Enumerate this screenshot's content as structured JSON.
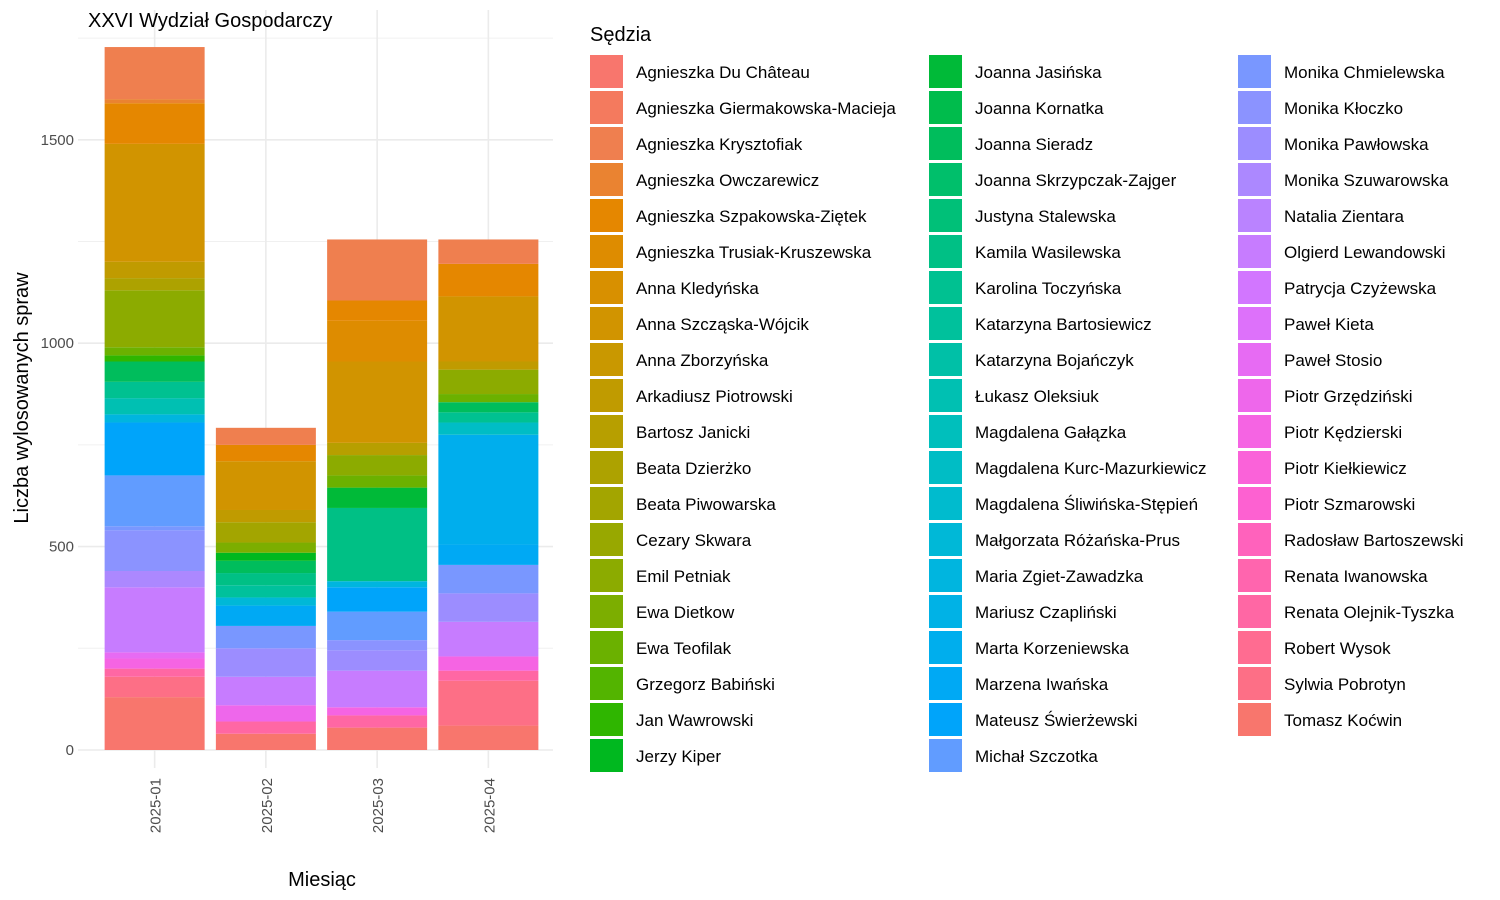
{
  "chart_data": {
    "type": "bar",
    "stacked": true,
    "title": "XXVI Wydział Gospodarczy",
    "xlabel": "Miesiąc",
    "ylabel": "Liczba wylosowanych spraw",
    "ylim": [
      0,
      1810
    ],
    "yticks": [
      0,
      500,
      1000,
      1500
    ],
    "grid": true,
    "categories": [
      "2025-01",
      "2025-02",
      "2025-03",
      "2025-04"
    ],
    "totals": [
      1728,
      792,
      1255,
      1255
    ],
    "legend": {
      "title": "Sędzia",
      "placement": "right",
      "entries": [
        {
          "name": "Agnieszka Du Château",
          "color": "#F8766D"
        },
        {
          "name": "Agnieszka Giermakowska-Macieja",
          "color": "#F47A5E"
        },
        {
          "name": "Agnieszka Krysztofiak",
          "color": "#EF7F4F"
        },
        {
          "name": "Agnieszka Owczarewicz",
          "color": "#EA8331"
        },
        {
          "name": "Agnieszka Szpakowska-Ziętek",
          "color": "#E58700"
        },
        {
          "name": "Agnieszka Trusiak-Kruszewska",
          "color": "#DE8C00"
        },
        {
          "name": "Anna Kledyńska",
          "color": "#D89000"
        },
        {
          "name": "Anna Szcząska-Wójcik",
          "color": "#D19400"
        },
        {
          "name": "Anna Zborzyńska",
          "color": "#C99800"
        },
        {
          "name": "Arkadiusz Piotrowski",
          "color": "#C09B00"
        },
        {
          "name": "Bartosz Janicki",
          "color": "#B79F00"
        },
        {
          "name": "Beata Dzierżko",
          "color": "#ADA200"
        },
        {
          "name": "Beata Piwowarska",
          "color": "#A3A500"
        },
        {
          "name": "Cezary Skwara",
          "color": "#98A800"
        },
        {
          "name": "Emil Petniak",
          "color": "#8CAB00"
        },
        {
          "name": "Ewa Dietkow",
          "color": "#7CAE00"
        },
        {
          "name": "Ewa Teofilak",
          "color": "#6BB100"
        },
        {
          "name": "Grzegorz Babiński",
          "color": "#53B400"
        },
        {
          "name": "Jan Wawrowski",
          "color": "#2FB600"
        },
        {
          "name": "Jerzy Kiper",
          "color": "#00B81F"
        },
        {
          "name": "Joanna Jasińska",
          "color": "#00BA38"
        },
        {
          "name": "Joanna Kornatka",
          "color": "#00BC4C"
        },
        {
          "name": "Joanna Sieradz",
          "color": "#00BD5C"
        },
        {
          "name": "Joanna Skrzypczak-Zajger",
          "color": "#00BF6B"
        },
        {
          "name": "Justyna Stalewska",
          "color": "#00C078"
        },
        {
          "name": "Kamila Wasilewska",
          "color": "#00C085"
        },
        {
          "name": "Karolina Toczyńska",
          "color": "#00C191"
        },
        {
          "name": "Katarzyna Bartosiewicz",
          "color": "#00C19C"
        },
        {
          "name": "Katarzyna Bojańczyk",
          "color": "#00C0A7"
        },
        {
          "name": "Łukasz Oleksiuk",
          "color": "#00C0B2"
        },
        {
          "name": "Magdalena Gałązka",
          "color": "#00BFBC"
        },
        {
          "name": "Magdalena Kurc-Mazurkiewicz",
          "color": "#00BDC5"
        },
        {
          "name": "Magdalena Śliwińska-Stępień",
          "color": "#00BBCE"
        },
        {
          "name": "Małgorzata Różańska-Prus",
          "color": "#00B8D7"
        },
        {
          "name": "Maria Zgiet-Zawadzka",
          "color": "#00B5DF"
        },
        {
          "name": "Mariusz Czapliński",
          "color": "#00B2E6"
        },
        {
          "name": "Marta Korzeniewska",
          "color": "#00AEED"
        },
        {
          "name": "Marzena Iwańska",
          "color": "#00A9F4"
        },
        {
          "name": "Mateusz Świerżewski",
          "color": "#00A4FA"
        },
        {
          "name": "Michał Szczotka",
          "color": "#619CFF"
        },
        {
          "name": "Monika Chmielewska",
          "color": "#7997FF"
        },
        {
          "name": "Monika Kłoczko",
          "color": "#8B93FF"
        },
        {
          "name": "Monika Pawłowska",
          "color": "#9C8DFF"
        },
        {
          "name": "Monika Szuwarowska",
          "color": "#AC88FF"
        },
        {
          "name": "Natalia Zientara",
          "color": "#BA83FF"
        },
        {
          "name": "Olgierd Lewandowski",
          "color": "#C77CFF"
        },
        {
          "name": "Patrycja Czyżewska",
          "color": "#D276FF"
        },
        {
          "name": "Paweł Kieta",
          "color": "#DD71FA"
        },
        {
          "name": "Paweł Stosio",
          "color": "#E76BF3"
        },
        {
          "name": "Piotr Grzędziński",
          "color": "#EE67EB"
        },
        {
          "name": "Piotr Kędzierski",
          "color": "#F564E3"
        },
        {
          "name": "Piotr Kiełkiewicz",
          "color": "#FA62D9"
        },
        {
          "name": "Piotr Szmarowski",
          "color": "#FD61D1"
        },
        {
          "name": "Radosław Bartoszewski",
          "color": "#FF62BC"
        },
        {
          "name": "Renata Iwanowska",
          "color": "#FF65AE"
        },
        {
          "name": "Renata Olejnik-Tyszka",
          "color": "#FF67A4"
        },
        {
          "name": "Robert Wysok",
          "color": "#FF6C91"
        },
        {
          "name": "Sylwia Pobrotyn",
          "color": "#FD6F86"
        },
        {
          "name": "Tomasz Koćwin",
          "color": "#F8766D"
        }
      ]
    },
    "stacks": [
      [
        {
          "color": "#F8766D",
          "value": 130
        },
        {
          "color": "#FD6F86",
          "value": 50
        },
        {
          "color": "#FF67A4",
          "value": 20
        },
        {
          "color": "#F564E3",
          "value": 25
        },
        {
          "color": "#E76BF3",
          "value": 15
        },
        {
          "color": "#C77CFF",
          "value": 160
        },
        {
          "color": "#AC88FF",
          "value": 40
        },
        {
          "color": "#8B93FF",
          "value": 100
        },
        {
          "color": "#7997FF",
          "value": 10
        },
        {
          "color": "#619CFF",
          "value": 125
        },
        {
          "color": "#00A4FA",
          "value": 130
        },
        {
          "color": "#00B5DF",
          "value": 20
        },
        {
          "color": "#00C0B2",
          "value": 40
        },
        {
          "color": "#00C191",
          "value": 40
        },
        {
          "color": "#00BD5C",
          "value": 50
        },
        {
          "color": "#2FB600",
          "value": 15
        },
        {
          "color": "#6BB100",
          "value": 20
        },
        {
          "color": "#8CAB00",
          "value": 140
        },
        {
          "color": "#ADA200",
          "value": 30
        },
        {
          "color": "#C09B00",
          "value": 40
        },
        {
          "color": "#D19400",
          "value": 290
        },
        {
          "color": "#E58700",
          "value": 100
        },
        {
          "color": "#EA8331",
          "value": 10
        },
        {
          "color": "#EF7F4F",
          "value": 128
        }
      ],
      [
        {
          "color": "#F8766D",
          "value": 40
        },
        {
          "color": "#FF67A4",
          "value": 30
        },
        {
          "color": "#EE67EB",
          "value": 40
        },
        {
          "color": "#C77CFF",
          "value": 70
        },
        {
          "color": "#9C8DFF",
          "value": 70
        },
        {
          "color": "#7997FF",
          "value": 55
        },
        {
          "color": "#00A9F4",
          "value": 50
        },
        {
          "color": "#00B8D7",
          "value": 20
        },
        {
          "color": "#00C19C",
          "value": 30
        },
        {
          "color": "#00C085",
          "value": 30
        },
        {
          "color": "#00BD5C",
          "value": 30
        },
        {
          "color": "#00B81F",
          "value": 20
        },
        {
          "color": "#7CAE00",
          "value": 25
        },
        {
          "color": "#A3A500",
          "value": 50
        },
        {
          "color": "#C09B00",
          "value": 30
        },
        {
          "color": "#D19400",
          "value": 120
        },
        {
          "color": "#E58700",
          "value": 40
        },
        {
          "color": "#EF7F4F",
          "value": 42
        }
      ],
      [
        {
          "color": "#F8766D",
          "value": 55
        },
        {
          "color": "#FF67A4",
          "value": 30
        },
        {
          "color": "#F564E3",
          "value": 20
        },
        {
          "color": "#C77CFF",
          "value": 90
        },
        {
          "color": "#9C8DFF",
          "value": 50
        },
        {
          "color": "#8B93FF",
          "value": 25
        },
        {
          "color": "#619CFF",
          "value": 70
        },
        {
          "color": "#00A4FA",
          "value": 60
        },
        {
          "color": "#00B5DF",
          "value": 15
        },
        {
          "color": "#00C085",
          "value": 180
        },
        {
          "color": "#00BA38",
          "value": 50
        },
        {
          "color": "#6BB100",
          "value": 30
        },
        {
          "color": "#8CAB00",
          "value": 50
        },
        {
          "color": "#B79F00",
          "value": 30
        },
        {
          "color": "#D19400",
          "value": 200
        },
        {
          "color": "#DE8C00",
          "value": 100
        },
        {
          "color": "#E58700",
          "value": 50
        },
        {
          "color": "#EF7F4F",
          "value": 150
        }
      ],
      [
        {
          "color": "#F8766D",
          "value": 60
        },
        {
          "color": "#FD6F86",
          "value": 110
        },
        {
          "color": "#FF67A4",
          "value": 25
        },
        {
          "color": "#F564E3",
          "value": 35
        },
        {
          "color": "#C77CFF",
          "value": 85
        },
        {
          "color": "#9C8DFF",
          "value": 70
        },
        {
          "color": "#7997FF",
          "value": 70
        },
        {
          "color": "#00A9F4",
          "value": 50
        },
        {
          "color": "#00AEED",
          "value": 270
        },
        {
          "color": "#00BDC5",
          "value": 30
        },
        {
          "color": "#00C191",
          "value": 25
        },
        {
          "color": "#00BD5C",
          "value": 25
        },
        {
          "color": "#6BB100",
          "value": 20
        },
        {
          "color": "#8CAB00",
          "value": 60
        },
        {
          "color": "#C09B00",
          "value": 20
        },
        {
          "color": "#D19400",
          "value": 160
        },
        {
          "color": "#E58700",
          "value": 80
        },
        {
          "color": "#EF7F4F",
          "value": 60
        }
      ]
    ]
  }
}
